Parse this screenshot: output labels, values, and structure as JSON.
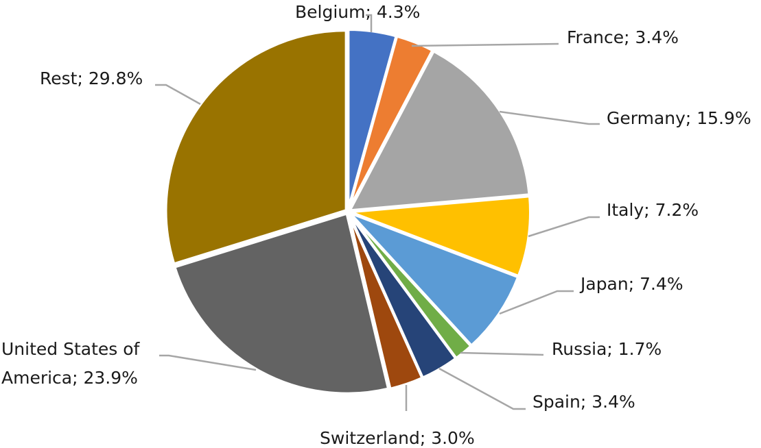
{
  "chart_data": {
    "type": "pie",
    "title": "",
    "slices": [
      {
        "label": "Belgium",
        "value": 4.3,
        "display": "Belgium; 4.3%",
        "color": "#4472c4"
      },
      {
        "label": "France",
        "value": 3.4,
        "display": "France; 3.4%",
        "color": "#ed7d31"
      },
      {
        "label": "Germany",
        "value": 15.9,
        "display": "Germany; 15.9%",
        "color": "#a5a5a5"
      },
      {
        "label": "Italy",
        "value": 7.2,
        "display": "Italy; 7.2%",
        "color": "#ffc000"
      },
      {
        "label": "Japan",
        "value": 7.4,
        "display": "Japan; 7.4%",
        "color": "#5b9bd5"
      },
      {
        "label": "Russia",
        "value": 1.7,
        "display": "Russia; 1.7%",
        "color": "#70ad47"
      },
      {
        "label": "Spain",
        "value": 3.4,
        "display": "Spain; 3.4%",
        "color": "#264478"
      },
      {
        "label": "Switzerland",
        "value": 3.0,
        "display": "Switzerland; 3.0%",
        "color": "#9e480e"
      },
      {
        "label": "United States of America",
        "value": 23.9,
        "display": [
          "United States of",
          "America; 23.9%"
        ],
        "color": "#636363"
      },
      {
        "label": "Rest",
        "value": 29.8,
        "display": "Rest; 29.8%",
        "color": "#997300"
      }
    ],
    "start_angle_deg": 0,
    "direction": "clockwise",
    "legend": "none",
    "data_labels": "outside with leader lines"
  }
}
